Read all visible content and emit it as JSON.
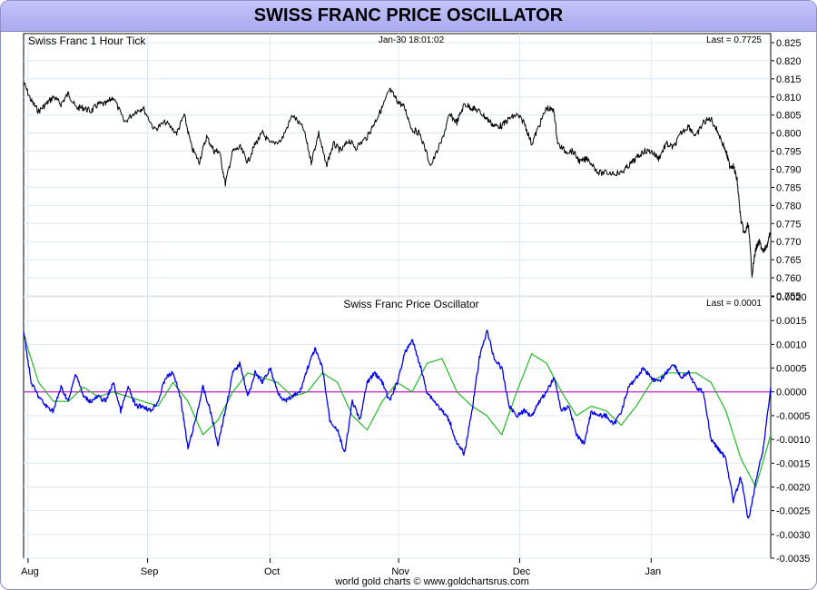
{
  "page_title": "SWISS FRANC PRICE OSCILLATOR",
  "footer": "world gold charts © www.goldchartsrus.com",
  "colors": {
    "price": "#000000",
    "oscillator": "#0000ee",
    "signal": "#22bb22",
    "zero_line": "#cc22cc",
    "title_bg": "#b8b8f4"
  },
  "chart_data": [
    {
      "type": "line",
      "title": "Swiss Franc 1 Hour Tick",
      "timestamp": "Jan-30  18:01:02",
      "last_label": "Last = 0.7725",
      "xlim": [
        0,
        1000
      ],
      "x_ticks": [
        {
          "x": 6,
          "label": "Aug"
        },
        {
          "x": 166,
          "label": "Sep"
        },
        {
          "x": 330,
          "label": "Oct"
        },
        {
          "x": 502,
          "label": "Nov"
        },
        {
          "x": 664,
          "label": "Dec"
        },
        {
          "x": 840,
          "label": "Jan"
        }
      ],
      "ylim": [
        0.755,
        0.8275
      ],
      "y_ticks": [
        0.755,
        0.76,
        0.765,
        0.77,
        0.775,
        0.78,
        0.785,
        0.79,
        0.795,
        0.8,
        0.805,
        0.81,
        0.815,
        0.82,
        0.825
      ],
      "grid": true,
      "series": [
        {
          "x": [
            0,
            10,
            20,
            30,
            40,
            50,
            60,
            70,
            80,
            90,
            100,
            110,
            120,
            135,
            150,
            160,
            175,
            190,
            205,
            215,
            225,
            235,
            245,
            255,
            262,
            270,
            280,
            290,
            300,
            310,
            320,
            330,
            345,
            360,
            375,
            385,
            395,
            405,
            415,
            425,
            435,
            445,
            460,
            470,
            480,
            490,
            500,
            510,
            520,
            530,
            545,
            560,
            570,
            580,
            590,
            600,
            610,
            620,
            630,
            640,
            650,
            660,
            670,
            680,
            690,
            700,
            710,
            715,
            725,
            735,
            745,
            755,
            770,
            785,
            800,
            810,
            820,
            830,
            840,
            850,
            860,
            870,
            880,
            890,
            900,
            910,
            920,
            930,
            940,
            945,
            950,
            955,
            960,
            965,
            970,
            975,
            980,
            985,
            990,
            995,
            1000
          ],
          "y": [
            0.814,
            0.809,
            0.806,
            0.808,
            0.81,
            0.808,
            0.811,
            0.807,
            0.807,
            0.806,
            0.808,
            0.808,
            0.81,
            0.803,
            0.806,
            0.807,
            0.801,
            0.803,
            0.8,
            0.805,
            0.796,
            0.792,
            0.799,
            0.795,
            0.795,
            0.786,
            0.795,
            0.796,
            0.792,
            0.797,
            0.8,
            0.797,
            0.798,
            0.805,
            0.801,
            0.792,
            0.8,
            0.791,
            0.797,
            0.795,
            0.798,
            0.796,
            0.799,
            0.803,
            0.807,
            0.812,
            0.809,
            0.807,
            0.801,
            0.8,
            0.791,
            0.798,
            0.805,
            0.803,
            0.808,
            0.807,
            0.806,
            0.804,
            0.802,
            0.802,
            0.804,
            0.805,
            0.803,
            0.797,
            0.802,
            0.807,
            0.806,
            0.797,
            0.795,
            0.795,
            0.792,
            0.793,
            0.789,
            0.789,
            0.789,
            0.791,
            0.793,
            0.795,
            0.795,
            0.793,
            0.797,
            0.796,
            0.8,
            0.802,
            0.799,
            0.803,
            0.804,
            0.8,
            0.795,
            0.791,
            0.791,
            0.787,
            0.776,
            0.772,
            0.775,
            0.761,
            0.768,
            0.77,
            0.767,
            0.769,
            0.7725
          ]
        }
      ]
    },
    {
      "type": "line",
      "title": "Swiss Franc Price Oscillator",
      "last_label": "Last = 0.0001",
      "xlim": [
        0,
        1000
      ],
      "ylim": [
        -0.0035,
        0.002
      ],
      "y_ticks": [
        -0.0035,
        -0.003,
        -0.0025,
        -0.002,
        -0.0015,
        -0.001,
        -0.0005,
        0.0,
        0.0005,
        0.001,
        0.0015,
        0.002
      ],
      "y_tick_labels": [
        "-0.0035",
        "-0.0030",
        "-0.0025",
        "-0.0020",
        "-0.0015",
        "-0.0010",
        "-0.0005",
        "0.0000",
        "0.0005",
        "0.0010",
        "0.0015",
        "0.0020"
      ],
      "grid": true,
      "reference_line": 0,
      "series": [
        {
          "x": [
            0,
            10,
            20,
            30,
            40,
            50,
            60,
            70,
            80,
            90,
            100,
            110,
            120,
            130,
            140,
            150,
            160,
            170,
            180,
            190,
            200,
            210,
            220,
            230,
            240,
            250,
            260,
            270,
            280,
            290,
            300,
            310,
            320,
            330,
            340,
            350,
            360,
            370,
            380,
            390,
            400,
            410,
            420,
            430,
            440,
            450,
            460,
            470,
            480,
            490,
            500,
            510,
            520,
            530,
            540,
            550,
            560,
            570,
            580,
            590,
            600,
            610,
            620,
            630,
            640,
            650,
            660,
            670,
            680,
            690,
            700,
            710,
            720,
            730,
            740,
            750,
            760,
            770,
            780,
            790,
            800,
            810,
            820,
            830,
            840,
            850,
            860,
            870,
            880,
            890,
            900,
            910,
            920,
            930,
            940,
            950,
            960,
            970,
            980,
            990,
            1000
          ],
          "y": [
            0.0013,
            0.0002,
            -0.0001,
            -0.0003,
            -0.0004,
            0.0001,
            -0.0002,
            0.0004,
            -0.0001,
            -0.0002,
            -0.0001,
            -0.0002,
            0.0002,
            -0.0004,
            0.0001,
            -0.0003,
            -0.0003,
            -0.0004,
            -0.0002,
            0.0003,
            0.0004,
            -0.0001,
            -0.0012,
            -0.0006,
            0.0001,
            -0.0004,
            -0.0011,
            -0.0004,
            0.0004,
            0.0006,
            -0.0001,
            0.0004,
            0.0002,
            0.0005,
            0.0,
            -0.0002,
            -0.0001,
            0.0,
            0.0005,
            0.0009,
            0.0005,
            -0.0006,
            -0.0008,
            -0.0013,
            -0.0002,
            -0.0006,
            0.0002,
            0.0004,
            0.0002,
            -0.0002,
            0.0002,
            0.0008,
            0.0011,
            0.0006,
            0.0,
            -0.0002,
            -0.0004,
            -0.0006,
            -0.0011,
            -0.0013,
            -0.0004,
            0.0007,
            0.0013,
            0.0007,
            0.0005,
            -0.0003,
            -0.0005,
            -0.0004,
            -0.0005,
            -0.0002,
            0.0,
            0.0003,
            -0.0004,
            -0.0003,
            -0.0009,
            -0.0011,
            -0.0004,
            -0.0005,
            -0.0005,
            -0.0007,
            -0.0004,
            0.0001,
            0.0003,
            0.0005,
            0.0003,
            0.0002,
            0.0004,
            0.0006,
            0.0003,
            0.0004,
            0.0001,
            0.0,
            -0.001,
            -0.0012,
            -0.0014,
            -0.0023,
            -0.0018,
            -0.0027,
            -0.0019,
            -0.0012,
            0.0001
          ]
        },
        {
          "x": [
            0,
            20,
            40,
            60,
            80,
            100,
            120,
            140,
            160,
            180,
            200,
            220,
            240,
            260,
            280,
            300,
            320,
            340,
            360,
            380,
            400,
            420,
            440,
            460,
            480,
            500,
            520,
            540,
            560,
            580,
            600,
            620,
            640,
            660,
            680,
            700,
            720,
            740,
            760,
            780,
            800,
            820,
            840,
            860,
            880,
            900,
            920,
            940,
            960,
            980,
            1000
          ],
          "y": [
            0.0012,
            0.0002,
            -0.0002,
            -0.0002,
            0.0001,
            -0.0001,
            0.0,
            -0.0001,
            -0.0002,
            -0.0003,
            0.0002,
            -0.0002,
            -0.0009,
            -0.0006,
            0.0,
            0.0004,
            0.0003,
            0.0002,
            -0.0001,
            0.0,
            0.0004,
            0.0002,
            -0.0005,
            -0.0008,
            -0.0002,
            0.0002,
            0.0,
            0.0006,
            0.0007,
            0.0,
            -0.0003,
            -0.0005,
            -0.0009,
            0.0,
            0.0008,
            0.0006,
            0.0,
            -0.0005,
            -0.0003,
            -0.0004,
            -0.0007,
            -0.0003,
            0.0002,
            0.0004,
            0.0004,
            0.0004,
            0.0002,
            -0.0004,
            -0.0014,
            -0.002,
            -0.0009
          ]
        }
      ]
    }
  ]
}
